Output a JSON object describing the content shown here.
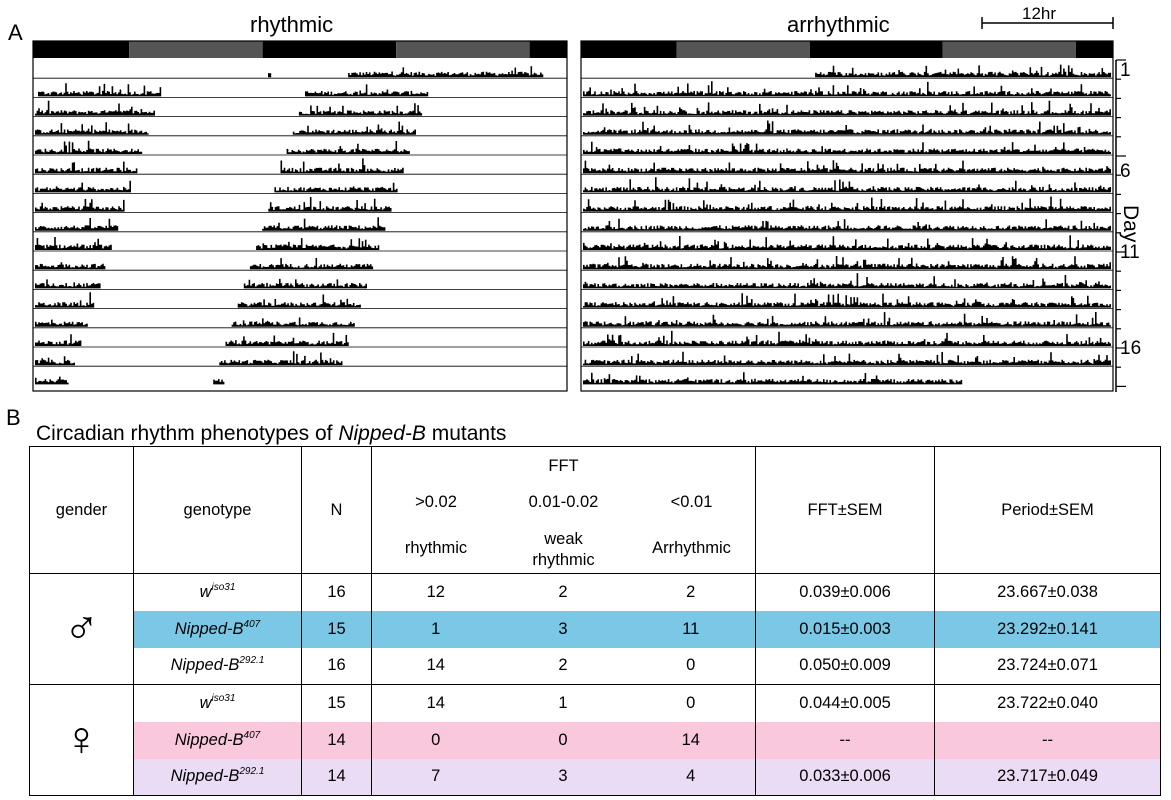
{
  "panel_a": {
    "letter": "A",
    "left_title": "rhythmic",
    "right_title": "arrhythmic",
    "scale_label": "12hr",
    "day_axis_label": "Day",
    "day_ticks": [
      "1",
      "6",
      "11",
      "16"
    ]
  },
  "panel_b": {
    "letter": "B",
    "title_prefix": "Circadian rhythm phenotypes of ",
    "title_italic": "Nipped-B",
    "title_suffix": " mutants",
    "headers": {
      "gender": "gender",
      "genotype": "genotype",
      "n": "N",
      "fft": "FFT",
      "fft_gt": ">0.02",
      "fft_mid": "0.01-0.02",
      "fft_lt": "<0.01",
      "rhythmic": "rhythmic",
      "weak_1": "weak",
      "weak_2": "rhythmic",
      "arrhythmic": "Arrhythmic",
      "fft_sem": "FFT±SEM",
      "period_sem": "Period±SEM"
    },
    "male_symbol": "♂",
    "female_symbol": "♀",
    "rows": [
      {
        "gene": "w",
        "allele": "iso31",
        "n": "16",
        "rhythmic": "12",
        "weak": "2",
        "arrhythmic": "2",
        "fft_sem": "0.039±0.006",
        "period_sem": "23.667±0.038"
      },
      {
        "gene": "Nipped-B",
        "allele": "407",
        "n": "15",
        "rhythmic": "1",
        "weak": "3",
        "arrhythmic": "11",
        "fft_sem": "0.015±0.003",
        "period_sem": "23.292±0.141"
      },
      {
        "gene": "Nipped-B",
        "allele": "292.1",
        "n": "16",
        "rhythmic": "14",
        "weak": "2",
        "arrhythmic": "0",
        "fft_sem": "0.050±0.009",
        "period_sem": "23.724±0.071"
      },
      {
        "gene": "w",
        "allele": "iso31",
        "n": "15",
        "rhythmic": "14",
        "weak": "1",
        "arrhythmic": "0",
        "fft_sem": "0.044±0.005",
        "period_sem": "23.722±0.040"
      },
      {
        "gene": "Nipped-B",
        "allele": "407",
        "n": "14",
        "rhythmic": "0",
        "weak": "0",
        "arrhythmic": "14",
        "fft_sem": "--",
        "period_sem": "--"
      },
      {
        "gene": "Nipped-B",
        "allele": "292.1",
        "n": "14",
        "rhythmic": "7",
        "weak": "3",
        "arrhythmic": "4",
        "fft_sem": "0.033±0.006",
        "period_sem": "23.717±0.049"
      }
    ],
    "row_colors": [
      "#ffffff",
      "#7ac8e6",
      "#ffffff",
      "#ffffff",
      "#f9c8dc",
      "#eadcf5"
    ]
  },
  "chart_data": [
    {
      "type": "bar",
      "subtype": "double-plotted actogram",
      "title": "rhythmic",
      "days": 17,
      "hours_per_row": 48,
      "light_bar": [
        "dark",
        "subjective-day",
        "dark",
        "subjective-day",
        "dark"
      ],
      "activity_bands_per_day_hours": [
        [
          1,
          12
        ],
        [
          25,
          36
        ]
      ],
      "activity_band_shift_per_day_hours": -0.55
    },
    {
      "type": "bar",
      "subtype": "double-plotted actogram",
      "title": "arrhythmic",
      "days": 17,
      "hours_per_row": 48,
      "light_bar": [
        "dark",
        "subjective-day",
        "dark",
        "subjective-day",
        "dark"
      ],
      "activity_bands_per_day_hours": [
        [
          0,
          48
        ]
      ],
      "activity_band_shift_per_day_hours": 0
    }
  ]
}
